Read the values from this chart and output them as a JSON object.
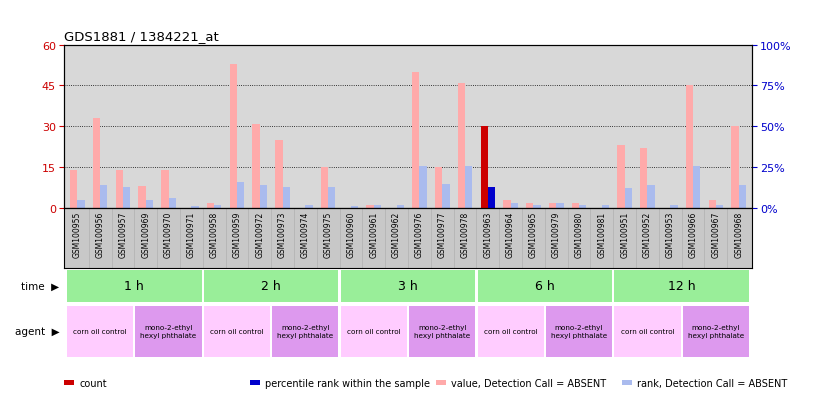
{
  "title": "GDS1881 / 1384221_at",
  "samples": [
    "GSM100955",
    "GSM100956",
    "GSM100957",
    "GSM100969",
    "GSM100970",
    "GSM100971",
    "GSM100958",
    "GSM100959",
    "GSM100972",
    "GSM100973",
    "GSM100974",
    "GSM100975",
    "GSM100960",
    "GSM100961",
    "GSM100962",
    "GSM100976",
    "GSM100977",
    "GSM100978",
    "GSM100963",
    "GSM100964",
    "GSM100965",
    "GSM100979",
    "GSM100980",
    "GSM100981",
    "GSM100951",
    "GSM100952",
    "GSM100953",
    "GSM100966",
    "GSM100967",
    "GSM100968"
  ],
  "value_absent": [
    14,
    33,
    14,
    8,
    14,
    0,
    2,
    53,
    31,
    25,
    0,
    15,
    0,
    1,
    0,
    50,
    15,
    46,
    0,
    3,
    2,
    2,
    2,
    0,
    23,
    22,
    0,
    45,
    3,
    30
  ],
  "rank_absent": [
    5,
    14,
    13,
    5,
    6,
    1,
    2,
    16,
    14,
    13,
    2,
    13,
    1,
    2,
    2,
    26,
    15,
    26,
    0,
    3,
    2,
    3,
    2,
    2,
    12,
    14,
    2,
    26,
    2,
    14
  ],
  "count_present": [
    0,
    0,
    0,
    0,
    0,
    0,
    0,
    0,
    0,
    0,
    0,
    0,
    0,
    0,
    0,
    0,
    0,
    0,
    30,
    0,
    0,
    0,
    0,
    0,
    0,
    0,
    0,
    0,
    0,
    0
  ],
  "rank_present": [
    0,
    0,
    0,
    0,
    0,
    0,
    0,
    0,
    0,
    0,
    0,
    0,
    0,
    0,
    0,
    0,
    0,
    0,
    13,
    0,
    0,
    0,
    0,
    0,
    0,
    0,
    0,
    0,
    0,
    0
  ],
  "time_groups": [
    {
      "label": "1 h",
      "start": 0,
      "end": 6
    },
    {
      "label": "2 h",
      "start": 6,
      "end": 12
    },
    {
      "label": "3 h",
      "start": 12,
      "end": 18
    },
    {
      "label": "6 h",
      "start": 18,
      "end": 24
    },
    {
      "label": "12 h",
      "start": 24,
      "end": 30
    }
  ],
  "agent_groups": [
    {
      "label": "corn oil control",
      "start": 0,
      "end": 3,
      "color": "#ffccff"
    },
    {
      "label": "mono-2-ethyl\nhexyl phthalate",
      "start": 3,
      "end": 6,
      "color": "#dd99ee"
    },
    {
      "label": "corn oil control",
      "start": 6,
      "end": 9,
      "color": "#ffccff"
    },
    {
      "label": "mono-2-ethyl\nhexyl phthalate",
      "start": 9,
      "end": 12,
      "color": "#dd99ee"
    },
    {
      "label": "corn oil control",
      "start": 12,
      "end": 15,
      "color": "#ffccff"
    },
    {
      "label": "mono-2-ethyl\nhexyl phthalate",
      "start": 15,
      "end": 18,
      "color": "#dd99ee"
    },
    {
      "label": "corn oil control",
      "start": 18,
      "end": 21,
      "color": "#ffccff"
    },
    {
      "label": "mono-2-ethyl\nhexyl phthalate",
      "start": 21,
      "end": 24,
      "color": "#dd99ee"
    },
    {
      "label": "corn oil control",
      "start": 24,
      "end": 27,
      "color": "#ffccff"
    },
    {
      "label": "mono-2-ethyl\nhexyl phthalate",
      "start": 27,
      "end": 30,
      "color": "#dd99ee"
    }
  ],
  "ylim_left": [
    0,
    60
  ],
  "ylim_right": [
    0,
    100
  ],
  "yticks_left": [
    0,
    15,
    30,
    45,
    60
  ],
  "yticks_right": [
    0,
    25,
    50,
    75,
    100
  ],
  "bar_width": 0.32,
  "color_value_absent": "#ffaaaa",
  "color_rank_absent": "#aabbee",
  "color_count_present": "#cc0000",
  "color_rank_present": "#0000cc",
  "bg_color": "#ffffff",
  "plot_bg_color": "#d8d8d8",
  "sample_bg_color": "#c8c8c8",
  "time_row_color": "#99ee99",
  "ylabel_left_color": "#cc0000",
  "ylabel_right_color": "#0000cc",
  "legend": [
    {
      "color": "#cc0000",
      "label": "count"
    },
    {
      "color": "#0000cc",
      "label": "percentile rank within the sample"
    },
    {
      "color": "#ffaaaa",
      "label": "value, Detection Call = ABSENT"
    },
    {
      "color": "#aabbee",
      "label": "rank, Detection Call = ABSENT"
    }
  ]
}
